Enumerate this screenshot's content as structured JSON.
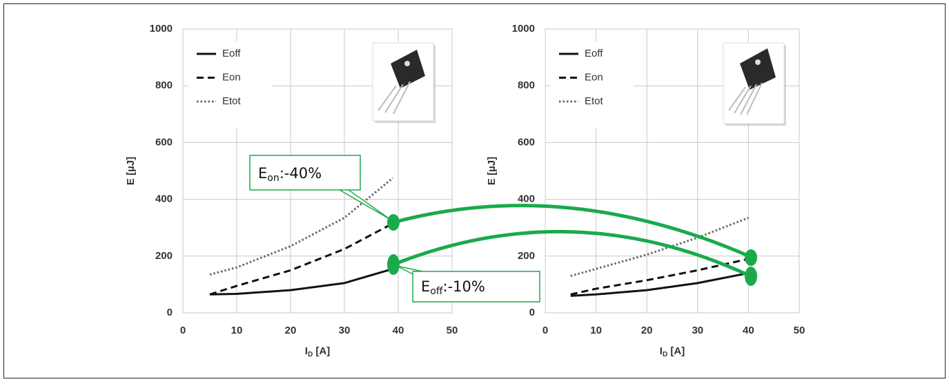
{
  "chart_data": [
    {
      "type": "line",
      "x_label": {
        "base": "I",
        "sub": "D",
        "text": " [A]"
      },
      "y_label": "E [µJ]",
      "x": [
        5,
        10,
        20,
        30,
        39
      ],
      "series": [
        {
          "name": "Eoff",
          "color": "#111111",
          "style": "solid",
          "values": [
            65,
            67,
            80,
            105,
            155
          ]
        },
        {
          "name": "Eon",
          "color": "#111111",
          "style": "dashed",
          "values": [
            65,
            95,
            150,
            225,
            315
          ]
        },
        {
          "name": "Etot",
          "color": "#666666",
          "style": "dotted",
          "values": [
            135,
            160,
            235,
            335,
            475
          ]
        }
      ],
      "xlim": [
        0,
        50
      ],
      "xticks": [
        0,
        10,
        20,
        30,
        40,
        50
      ],
      "ylim": [
        0,
        1000
      ],
      "yticks": [
        0,
        200,
        400,
        600,
        800,
        1000
      ],
      "grid": true,
      "legend": "upper left"
    },
    {
      "type": "line",
      "x_label": {
        "base": "I",
        "sub": "D",
        "text": " [A]"
      },
      "y_label": "E [µJ]",
      "x": [
        5,
        10,
        20,
        30,
        40
      ],
      "series": [
        {
          "name": "Eoff",
          "color": "#111111",
          "style": "solid",
          "values": [
            60,
            65,
            80,
            105,
            140
          ]
        },
        {
          "name": "Eon",
          "color": "#111111",
          "style": "dashed",
          "values": [
            65,
            85,
            115,
            150,
            190
          ]
        },
        {
          "name": "Etot",
          "color": "#666666",
          "style": "dotted",
          "values": [
            130,
            155,
            205,
            265,
            335
          ]
        }
      ],
      "xlim": [
        0,
        50
      ],
      "xticks": [
        0,
        10,
        20,
        30,
        40,
        50
      ],
      "ylim": [
        0,
        1000
      ],
      "yticks": [
        0,
        200,
        400,
        600,
        800,
        1000
      ],
      "grid": true,
      "legend": "upper left"
    }
  ],
  "annotations": [
    {
      "base": "E",
      "sub": "on",
      "text": ":-40%"
    },
    {
      "base": "E",
      "sub": "off",
      "text": ":-10%"
    }
  ]
}
